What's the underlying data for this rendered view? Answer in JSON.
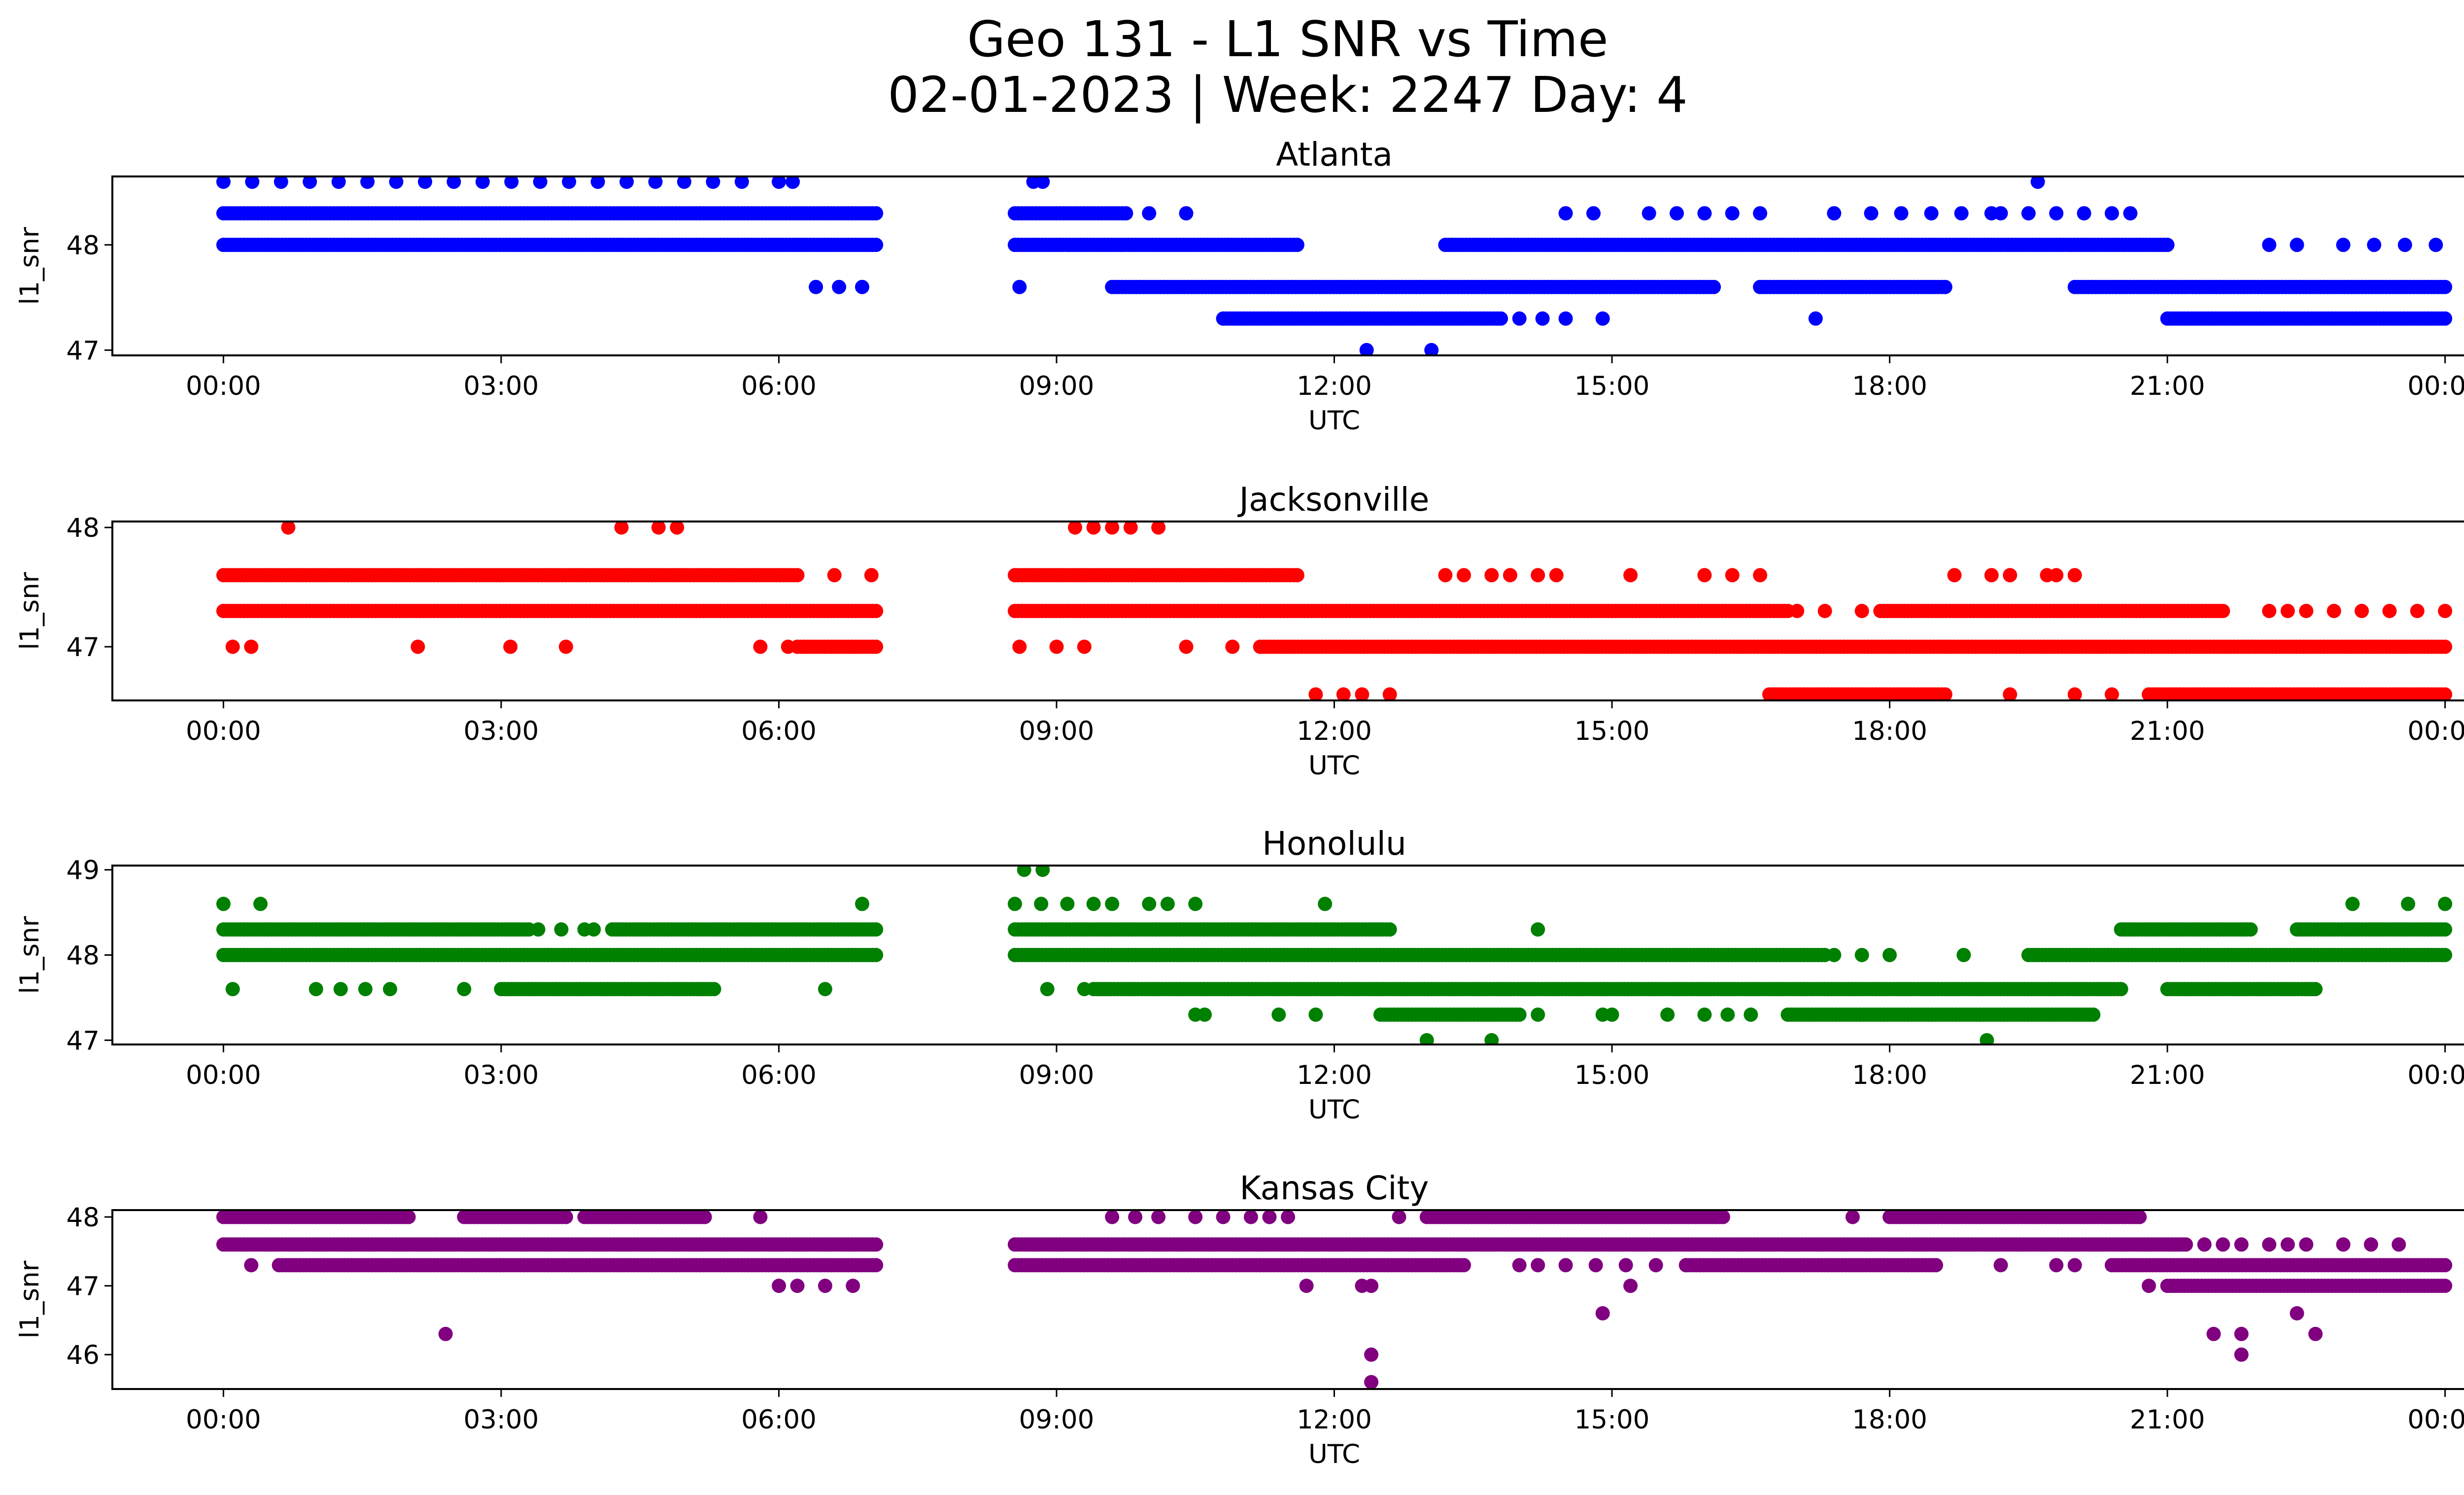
{
  "figure": {
    "title_line1": "Geo 131 - L1 SNR vs Time",
    "title_line2": "02-01-2023 | Week: 2247 Day: 4"
  },
  "chart_data": [
    {
      "type": "scatter",
      "title": "Atlanta",
      "xlabel": "UTC",
      "ylabel": "l1_snr",
      "color": "#0000ff",
      "x_ticks": [
        "00:00",
        "03:00",
        "06:00",
        "09:00",
        "12:00",
        "15:00",
        "18:00",
        "21:00",
        "00:00"
      ],
      "x_unit": "hours UTC",
      "xlim": [
        -1.2,
        25.2
      ],
      "ylim": [
        46.95,
        48.65
      ],
      "y_ticks": [
        47,
        48
      ],
      "bands": [
        {
          "y": 48.6,
          "ranges": [
            [
              0.0,
              5.6
            ],
            [
              6.0,
              6.15
            ]
          ],
          "style": "sparse"
        },
        {
          "y": 48.6,
          "ranges": [
            [
              8.75,
              8.85
            ],
            [
              19.6,
              19.6
            ]
          ],
          "style": "sparse"
        },
        {
          "y": 48.3,
          "ranges": [
            [
              0.0,
              7.05
            ],
            [
              8.55,
              9.75
            ]
          ],
          "style": "dense"
        },
        {
          "y": 48.3,
          "ranges": [
            [
              10.0,
              10.0
            ],
            [
              10.4,
              10.4
            ],
            [
              14.5,
              14.8
            ],
            [
              15.4,
              16.6
            ],
            [
              17.4,
              17.4
            ],
            [
              17.8,
              19.1
            ],
            [
              19.2,
              20.1
            ],
            [
              20.4,
              20.6
            ]
          ],
          "style": "sparse"
        },
        {
          "y": 48.0,
          "ranges": [
            [
              0.0,
              7.05
            ],
            [
              8.55,
              11.6
            ],
            [
              13.2,
              21.0
            ]
          ],
          "style": "dense"
        },
        {
          "y": 48.0,
          "ranges": [
            [
              22.1,
              22.1
            ],
            [
              22.4,
              22.4
            ],
            [
              22.9,
              23.9
            ]
          ],
          "style": "sparse"
        },
        {
          "y": 47.6,
          "ranges": [
            [
              6.4,
              6.9
            ],
            [
              8.6,
              8.6
            ]
          ],
          "style": "sparse"
        },
        {
          "y": 47.6,
          "ranges": [
            [
              9.6,
              16.1
            ],
            [
              16.6,
              18.6
            ],
            [
              20.0,
              24.0
            ]
          ],
          "style": "dense"
        },
        {
          "y": 47.3,
          "ranges": [
            [
              10.8,
              13.8
            ],
            [
              21.0,
              24.0
            ]
          ],
          "style": "dense"
        },
        {
          "y": 47.3,
          "ranges": [
            [
              14.0,
              14.5
            ],
            [
              14.9,
              14.9
            ],
            [
              17.2,
              17.2
            ]
          ],
          "style": "sparse"
        },
        {
          "y": 47.0,
          "ranges": [
            [
              12.35,
              12.35
            ],
            [
              13.05,
              13.05
            ]
          ],
          "style": "sparse"
        }
      ]
    },
    {
      "type": "scatter",
      "title": "Jacksonville",
      "xlabel": "UTC",
      "ylabel": "l1_snr",
      "color": "#ff0000",
      "x_ticks": [
        "00:00",
        "03:00",
        "06:00",
        "09:00",
        "12:00",
        "15:00",
        "18:00",
        "21:00",
        "00:00"
      ],
      "x_unit": "hours UTC",
      "xlim": [
        -1.2,
        25.2
      ],
      "ylim": [
        46.55,
        48.05
      ],
      "y_ticks": [
        47,
        48
      ],
      "bands": [
        {
          "y": 48.0,
          "ranges": [
            [
              0.7,
              0.7
            ],
            [
              4.3,
              4.3
            ],
            [
              4.7,
              4.9
            ],
            [
              9.2,
              9.4
            ],
            [
              9.6,
              9.8
            ],
            [
              10.1,
              10.1
            ]
          ],
          "style": "sparse"
        },
        {
          "y": 47.6,
          "ranges": [
            [
              0.0,
              6.2
            ],
            [
              8.55,
              11.6
            ]
          ],
          "style": "dense"
        },
        {
          "y": 47.6,
          "ranges": [
            [
              6.6,
              7.0
            ],
            [
              13.2,
              13.4
            ],
            [
              13.7,
              13.9
            ],
            [
              14.2,
              14.4
            ],
            [
              15.2,
              15.2
            ],
            [
              16.0,
              16.6
            ],
            [
              18.7,
              19.1
            ],
            [
              19.3,
              19.7
            ],
            [
              19.8,
              20.0
            ]
          ],
          "style": "sparse"
        },
        {
          "y": 47.3,
          "ranges": [
            [
              0.0,
              7.05
            ],
            [
              8.55,
              16.9
            ]
          ],
          "style": "dense"
        },
        {
          "y": 47.3,
          "ranges": [
            [
              17.0,
              17.0
            ],
            [
              17.3,
              17.3
            ],
            [
              17.7,
              17.7
            ]
          ],
          "style": "sparse"
        },
        {
          "y": 47.3,
          "ranges": [
            [
              17.9,
              21.6
            ]
          ],
          "style": "dense"
        },
        {
          "y": 47.3,
          "ranges": [
            [
              22.1,
              22.3
            ],
            [
              22.5,
              24.0
            ]
          ],
          "style": "sparse"
        },
        {
          "y": 47.0,
          "ranges": [
            [
              0.1,
              0.3
            ],
            [
              2.1,
              2.1
            ],
            [
              3.1,
              3.1
            ],
            [
              3.7,
              3.7
            ],
            [
              5.8,
              6.1
            ],
            [
              8.6,
              9.0
            ],
            [
              9.3,
              9.3
            ],
            [
              10.4,
              10.4
            ],
            [
              10.9,
              10.9
            ]
          ],
          "style": "sparse"
        },
        {
          "y": 47.0,
          "ranges": [
            [
              6.2,
              7.05
            ],
            [
              11.2,
              24.0
            ]
          ],
          "style": "dense"
        },
        {
          "y": 46.6,
          "ranges": [
            [
              11.8,
              11.8
            ],
            [
              12.1,
              12.3
            ],
            [
              12.6,
              12.6
            ],
            [
              19.3,
              19.3
            ],
            [
              20.0,
              20.4
            ]
          ],
          "style": "sparse"
        },
        {
          "y": 46.6,
          "ranges": [
            [
              16.7,
              18.6
            ],
            [
              20.8,
              24.0
            ]
          ],
          "style": "dense"
        }
      ]
    },
    {
      "type": "scatter",
      "title": "Honolulu",
      "xlabel": "UTC",
      "ylabel": "l1_snr",
      "color": "#008000",
      "x_ticks": [
        "00:00",
        "03:00",
        "06:00",
        "09:00",
        "12:00",
        "15:00",
        "18:00",
        "21:00",
        "00:00"
      ],
      "x_unit": "hours UTC",
      "xlim": [
        -1.2,
        25.2
      ],
      "ylim": [
        46.95,
        49.05
      ],
      "y_ticks": [
        47,
        48,
        49
      ],
      "bands": [
        {
          "y": 49.0,
          "ranges": [
            [
              8.65,
              8.85
            ]
          ],
          "style": "sparse"
        },
        {
          "y": 48.6,
          "ranges": [
            [
              0.0,
              0.4
            ],
            [
              6.9,
              6.9
            ],
            [
              8.55,
              9.4
            ],
            [
              9.6,
              10.0
            ],
            [
              10.2,
              10.5
            ],
            [
              11.9,
              11.9
            ],
            [
              23.0,
              23.0
            ],
            [
              23.6,
              24.0
            ]
          ],
          "style": "sparse"
        },
        {
          "y": 48.3,
          "ranges": [
            [
              0.0,
              3.3
            ],
            [
              4.2,
              7.05
            ],
            [
              8.55,
              12.6
            ],
            [
              20.5,
              21.9
            ],
            [
              22.4,
              24.0
            ]
          ],
          "style": "dense"
        },
        {
          "y": 48.3,
          "ranges": [
            [
              3.4,
              3.9
            ],
            [
              4.0,
              4.0
            ],
            [
              14.2,
              14.2
            ]
          ],
          "style": "sparse"
        },
        {
          "y": 48.0,
          "ranges": [
            [
              0.0,
              7.05
            ],
            [
              8.55,
              17.3
            ],
            [
              19.5,
              24.0
            ]
          ],
          "style": "dense"
        },
        {
          "y": 48.0,
          "ranges": [
            [
              17.4,
              18.0
            ],
            [
              18.8,
              18.8
            ]
          ],
          "style": "sparse"
        },
        {
          "y": 47.6,
          "ranges": [
            [
              0.1,
              0.1
            ],
            [
              1.0,
              1.8
            ],
            [
              2.6,
              2.6
            ],
            [
              6.5,
              6.5
            ],
            [
              8.9,
              8.9
            ],
            [
              9.3,
              9.3
            ]
          ],
          "style": "sparse"
        },
        {
          "y": 47.6,
          "ranges": [
            [
              3.0,
              5.3
            ],
            [
              9.4,
              20.5
            ],
            [
              21.0,
              22.6
            ]
          ],
          "style": "dense"
        },
        {
          "y": 47.3,
          "ranges": [
            [
              10.5,
              10.6
            ],
            [
              11.4,
              11.4
            ],
            [
              11.8,
              11.8
            ],
            [
              14.2,
              14.2
            ],
            [
              14.9,
              15.0
            ],
            [
              15.6,
              15.6
            ],
            [
              16.0,
              16.5
            ]
          ],
          "style": "sparse"
        },
        {
          "y": 47.3,
          "ranges": [
            [
              12.5,
              14.0
            ],
            [
              16.9,
              20.2
            ]
          ],
          "style": "dense"
        },
        {
          "y": 47.0,
          "ranges": [
            [
              13.0,
              13.0
            ],
            [
              13.7,
              13.7
            ],
            [
              19.05,
              19.05
            ]
          ],
          "style": "sparse"
        }
      ]
    },
    {
      "type": "scatter",
      "title": "Kansas City",
      "xlabel": "UTC",
      "ylabel": "l1_snr",
      "color": "#800080",
      "x_ticks": [
        "00:00",
        "03:00",
        "06:00",
        "09:00",
        "12:00",
        "15:00",
        "18:00",
        "21:00",
        "00:00"
      ],
      "x_unit": "hours UTC",
      "xlim": [
        -1.2,
        25.2
      ],
      "ylim": [
        45.5,
        48.1
      ],
      "y_ticks": [
        46,
        47,
        48
      ],
      "bands": [
        {
          "y": 48.0,
          "ranges": [
            [
              0.0,
              2.0
            ],
            [
              2.6,
              3.7
            ],
            [
              3.9,
              5.2
            ],
            [
              13.0,
              16.2
            ],
            [
              18.0,
              20.7
            ]
          ],
          "style": "dense"
        },
        {
          "y": 48.0,
          "ranges": [
            [
              5.8,
              5.8
            ],
            [
              9.6,
              10.1
            ],
            [
              10.5,
              10.8
            ],
            [
              11.1,
              11.3
            ],
            [
              11.5,
              11.5
            ],
            [
              12.7,
              12.7
            ],
            [
              17.6,
              17.6
            ]
          ],
          "style": "sparse"
        },
        {
          "y": 47.6,
          "ranges": [
            [
              0.0,
              7.05
            ],
            [
              8.55,
              21.2
            ]
          ],
          "style": "dense"
        },
        {
          "y": 47.6,
          "ranges": [
            [
              21.4,
              21.6
            ],
            [
              21.8,
              22.1
            ],
            [
              22.3,
              22.5
            ],
            [
              22.9,
              23.5
            ]
          ],
          "style": "sparse"
        },
        {
          "y": 47.3,
          "ranges": [
            [
              0.3,
              0.3
            ],
            [
              14.0,
              14.2
            ],
            [
              14.5,
              15.8
            ],
            [
              19.2,
              19.2
            ],
            [
              19.8,
              20.0
            ]
          ],
          "style": "sparse"
        },
        {
          "y": 47.3,
          "ranges": [
            [
              0.6,
              7.05
            ],
            [
              8.55,
              13.4
            ],
            [
              15.8,
              18.5
            ],
            [
              20.4,
              24.0
            ]
          ],
          "style": "dense"
        },
        {
          "y": 47.0,
          "ranges": [
            [
              6.0,
              6.2
            ],
            [
              6.5,
              6.8
            ],
            [
              11.7,
              11.7
            ],
            [
              12.3,
              12.4
            ],
            [
              15.2,
              15.2
            ],
            [
              20.8,
              20.8
            ]
          ],
          "style": "sparse"
        },
        {
          "y": 47.0,
          "ranges": [
            [
              21.0,
              24.0
            ]
          ],
          "style": "dense"
        },
        {
          "y": 46.6,
          "ranges": [
            [
              14.9,
              14.9
            ],
            [
              22.4,
              22.4
            ]
          ],
          "style": "sparse"
        },
        {
          "y": 46.3,
          "ranges": [
            [
              2.4,
              2.4
            ],
            [
              21.5,
              21.5
            ],
            [
              21.8,
              21.8
            ],
            [
              22.6,
              22.6
            ]
          ],
          "style": "sparse"
        },
        {
          "y": 46.0,
          "ranges": [
            [
              12.4,
              12.4
            ],
            [
              21.8,
              21.8
            ]
          ],
          "style": "sparse"
        },
        {
          "y": 45.6,
          "ranges": [
            [
              12.4,
              12.4
            ]
          ],
          "style": "sparse"
        }
      ]
    }
  ]
}
